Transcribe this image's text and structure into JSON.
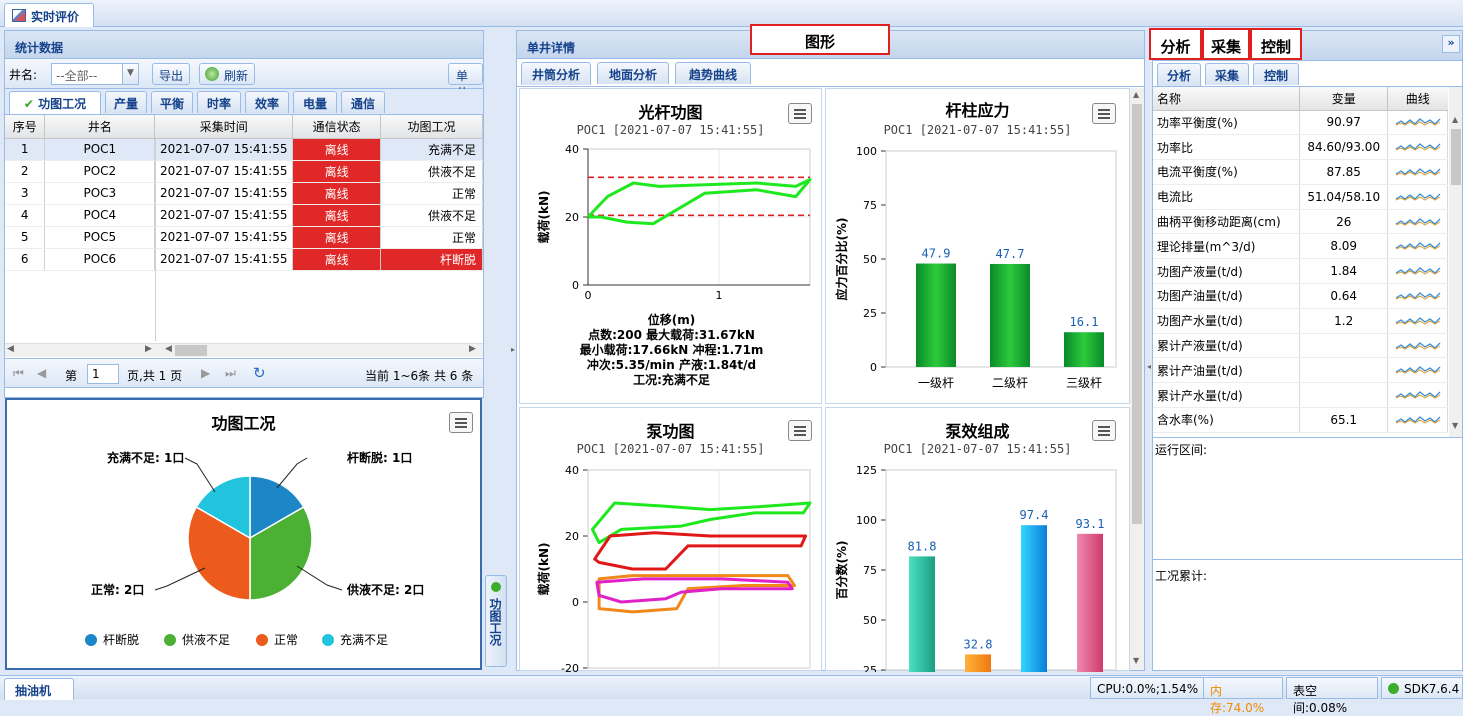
{
  "top": {
    "tab": "实时评价"
  },
  "left": {
    "header": "统计数据",
    "well_label": "井名:",
    "well_select": "--全部--",
    "export": "导出",
    "refresh": "刷新",
    "history": "单井历史",
    "tabs": [
      "功图工况",
      "产量",
      "平衡",
      "时率",
      "效率",
      "电量",
      "通信"
    ],
    "columns": [
      "序号",
      "井名",
      "采集时间",
      "通信状态",
      "功图工况"
    ],
    "rows": [
      [
        "1",
        "POC1",
        "2021-07-07 15:41:55",
        "离线",
        "充满不足"
      ],
      [
        "2",
        "POC2",
        "2021-07-07 15:41:55",
        "离线",
        "供液不足"
      ],
      [
        "3",
        "POC3",
        "2021-07-07 15:41:55",
        "离线",
        "正常"
      ],
      [
        "4",
        "POC4",
        "2021-07-07 15:41:55",
        "离线",
        "供液不足"
      ],
      [
        "5",
        "POC5",
        "2021-07-07 15:41:55",
        "离线",
        "正常"
      ],
      [
        "6",
        "POC6",
        "2021-07-07 15:41:55",
        "离线",
        "杆断脱"
      ]
    ],
    "pager": {
      "page_prefix": "第",
      "page": "1",
      "page_suffix": "页,共 1 页",
      "summary": "当前 1~6条 共 6 条"
    },
    "side_tab": "功图工况"
  },
  "pie": {
    "chart_data": {
      "type": "pie",
      "title": "功图工况",
      "slices": [
        {
          "name": "杆断脱",
          "value": 1,
          "color": "#1c86c6"
        },
        {
          "name": "供液不足",
          "value": 2,
          "color": "#4cb034"
        },
        {
          "name": "正常",
          "value": 2,
          "color": "#ec5a1c"
        },
        {
          "name": "充满不足",
          "value": 1,
          "color": "#22c3dd"
        }
      ],
      "labels": [
        "杆断脱: 1口",
        "供液不足: 2口",
        "正常: 2口",
        "充满不足: 1口"
      ]
    }
  },
  "middle": {
    "header": "单井详情",
    "tabs": [
      "井筒分析",
      "地面分析",
      "趋势曲线"
    ],
    "graph_label": "图形",
    "c1": {
      "chart_data": {
        "type": "line",
        "title": "光杆功图",
        "subtitle": "POC1 [2021-07-07 15:41:55]",
        "xlabel": "位移(m)",
        "ylabel": "载荷(kN)",
        "xticks": [
          "0",
          "1"
        ],
        "yticks": [
          "0",
          "20",
          "40"
        ],
        "xlim": [
          0,
          1.71
        ],
        "ylim": [
          0,
          40
        ],
        "curve": [
          [
            0,
            20
          ],
          [
            0.15,
            26
          ],
          [
            0.35,
            30
          ],
          [
            0.55,
            29
          ],
          [
            0.9,
            29.5
          ],
          [
            1.3,
            30
          ],
          [
            1.6,
            29
          ],
          [
            1.71,
            31
          ],
          [
            1.6,
            26
          ],
          [
            1.3,
            28
          ],
          [
            0.9,
            27
          ],
          [
            0.5,
            18
          ],
          [
            0.3,
            18.5
          ],
          [
            0.1,
            20
          ],
          [
            0,
            20
          ]
        ],
        "hlines": [
          31.67,
          20.5
        ],
        "info": [
          "点数:200 最大载荷:31.67kN",
          "最小载荷:17.66kN 冲程:1.71m",
          "冲次:5.35/min 产液:1.84t/d",
          "工况:充满不足"
        ]
      }
    },
    "c2": {
      "chart_data": {
        "type": "bar",
        "title": "杆柱应力",
        "subtitle": "POC1 [2021-07-07 15:41:55]",
        "ylabel": "应力百分比(%)",
        "categories": [
          "一级杆",
          "二级杆",
          "三级杆"
        ],
        "values": [
          47.9,
          47.7,
          16.1
        ],
        "labels": [
          "47.9",
          "47.7",
          "16.1"
        ],
        "ylim": [
          0,
          100
        ],
        "yticks": [
          "0",
          "25",
          "50",
          "75",
          "100"
        ]
      }
    },
    "c3": {
      "chart_data": {
        "type": "line",
        "title": "泵功图",
        "subtitle": "POC1 [2021-07-07 15:41:55]",
        "ylabel": "载荷(kN)",
        "yticks": [
          "-20",
          "0",
          "20",
          "40"
        ],
        "ylim": [
          -20,
          40
        ]
      }
    },
    "c4": {
      "chart_data": {
        "type": "bar",
        "title": "泵效组成",
        "subtitle": "POC1 [2021-07-07 15:41:55]",
        "ylabel": "百分数(%)",
        "values": [
          81.8,
          32.8,
          97.4,
          93.1
        ],
        "labels": [
          "81.8",
          "32.8",
          "97.4",
          "93.1"
        ],
        "ylim": [
          25,
          125
        ],
        "yticks": [
          "25",
          "50",
          "75",
          "100",
          "125"
        ]
      }
    }
  },
  "right": {
    "labels": [
      "分析",
      "采集",
      "控制"
    ],
    "tabs": [
      "分析",
      "采集",
      "控制"
    ],
    "columns": [
      "名称",
      "变量",
      "曲线"
    ],
    "rows": [
      [
        "功率平衡度(%)",
        "90.97"
      ],
      [
        "功率比",
        "84.60/93.00"
      ],
      [
        "电流平衡度(%)",
        "87.85"
      ],
      [
        "电流比",
        "51.04/58.10"
      ],
      [
        "曲柄平衡移动距离(cm)",
        "26"
      ],
      [
        "理论排量(m^3/d)",
        "8.09"
      ],
      [
        "功图产液量(t/d)",
        "1.84"
      ],
      [
        "功图产油量(t/d)",
        "0.64"
      ],
      [
        "功图产水量(t/d)",
        "1.2"
      ],
      [
        "累计产液量(t/d)",
        ""
      ],
      [
        "累计产油量(t/d)",
        ""
      ],
      [
        "累计产水量(t/d)",
        ""
      ],
      [
        "含水率(%)",
        "65.1"
      ]
    ],
    "run_label": "运行区间:",
    "acc_label": "工况累计:"
  },
  "statusbar": {
    "left": "抽油机",
    "cpu": "CPU:0.0%;1.54%",
    "mem": "内存:74.0%",
    "space": "表空间:0.08%",
    "sdk": "SDK7.6.4"
  }
}
